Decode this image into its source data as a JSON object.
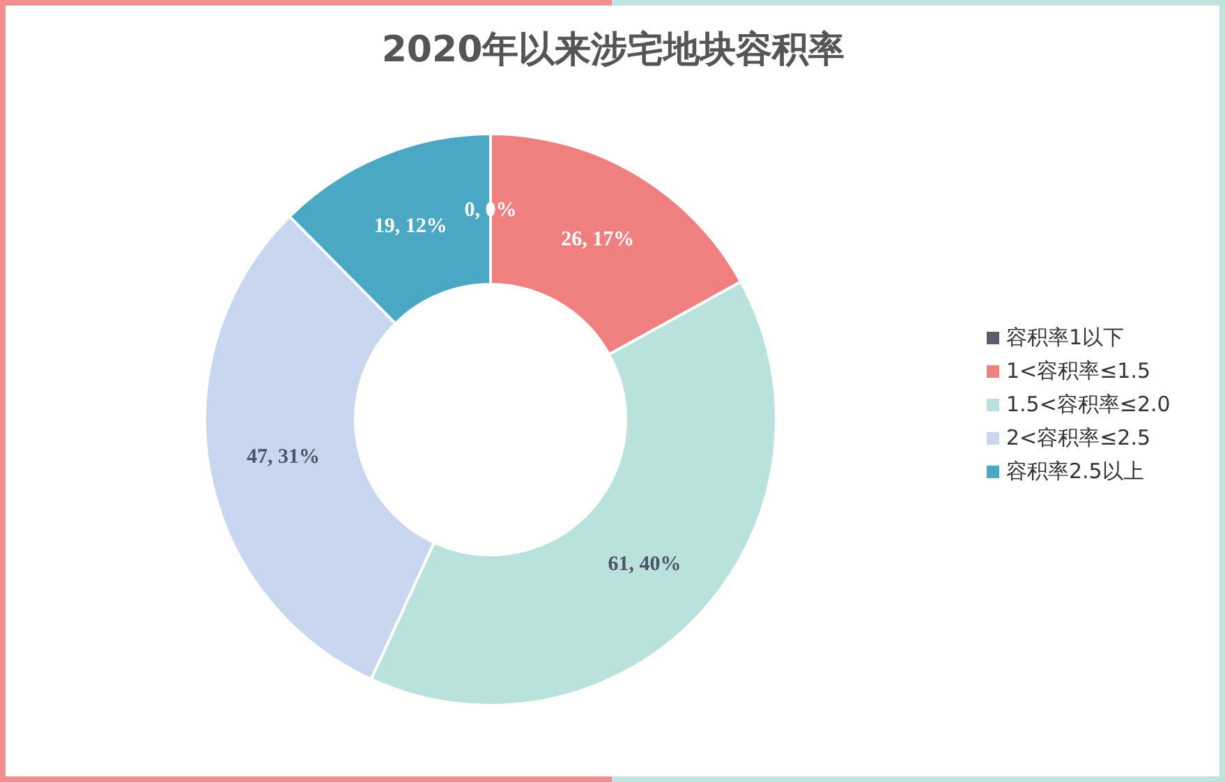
{
  "chart_data": {
    "type": "donut",
    "title": "2020年以来涉宅地块容积率",
    "categories": [
      "容积率1以下",
      "1<容积率≤1.5",
      "1.5<容积率≤2.0",
      "2<容积率≤2.5",
      "容积率2.5以上"
    ],
    "values": [
      0,
      26,
      61,
      47,
      19
    ],
    "colors": [
      "#5e5a6c",
      "#f08080",
      "#b8e2db",
      "#c8d7ef",
      "#4aa8c4"
    ],
    "value_labels": [
      "0, 0%",
      "26, 17%",
      "61, 40%",
      "47, 31%",
      "19, 12%"
    ],
    "legend": "right"
  }
}
